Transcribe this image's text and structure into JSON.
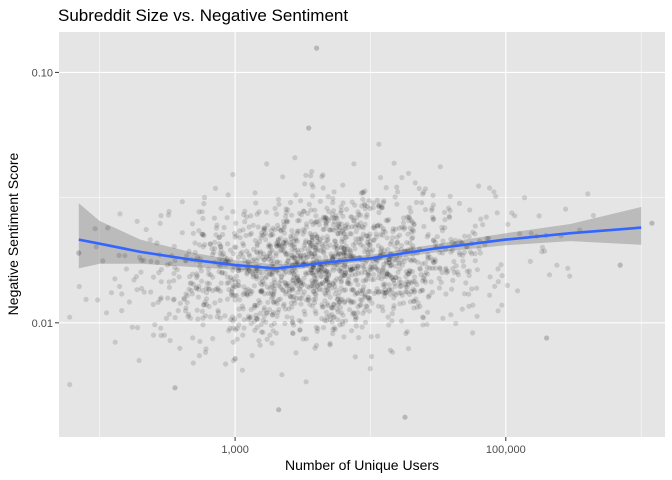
{
  "chart_data": {
    "type": "scatter",
    "title": "Subreddit Size vs. Negative Sentiment",
    "xlabel": "Number of Unique Users",
    "ylabel": "Negative Sentiment Score",
    "x_scale": "log10",
    "y_scale": "log10",
    "xlim": [
      50,
      1500000
    ],
    "ylim": [
      0.0035,
      0.145
    ],
    "x_ticks": [
      {
        "value": 1000,
        "label": "1,000"
      },
      {
        "value": 100000,
        "label": "100,000"
      }
    ],
    "y_ticks": [
      {
        "value": 0.01,
        "label": "0.01"
      },
      {
        "value": 0.1,
        "label": "0.10"
      }
    ],
    "grid": true,
    "colors": {
      "panel": "#e5e5e5",
      "grid_major": "#ffffff",
      "points": "#000000",
      "smooth_line": "#3366ff",
      "confidence_band": "#999999"
    },
    "smooth": {
      "method": "loess",
      "x": [
        70,
        100,
        200,
        500,
        1000,
        2000,
        3000,
        5000,
        10000,
        30000,
        100000,
        300000,
        1000000
      ],
      "y": [
        0.0215,
        0.0207,
        0.0192,
        0.0178,
        0.017,
        0.0165,
        0.0169,
        0.0175,
        0.0181,
        0.0198,
        0.0215,
        0.0228,
        0.024
      ],
      "lower": [
        0.0165,
        0.0172,
        0.0172,
        0.0167,
        0.0163,
        0.016,
        0.0164,
        0.017,
        0.0176,
        0.0191,
        0.0204,
        0.0212,
        0.0205
      ],
      "upper": [
        0.03,
        0.0255,
        0.0215,
        0.019,
        0.0178,
        0.0171,
        0.0174,
        0.018,
        0.0187,
        0.0206,
        0.0228,
        0.0248,
        0.029
      ]
    },
    "points_summary": {
      "count": 1700,
      "x_range": [
        60,
        1200000
      ],
      "y_range": [
        0.0042,
        0.125
      ],
      "note": "dense cloud centred near 5,000 users and 0.018 score"
    },
    "points_outliers": [
      {
        "x": 4000,
        "y": 0.125
      },
      {
        "x": 3500,
        "y": 0.06
      },
      {
        "x": 360,
        "y": 0.0055
      },
      {
        "x": 2100,
        "y": 0.0045
      },
      {
        "x": 18000,
        "y": 0.0042
      },
      {
        "x": 1000,
        "y": 0.0072
      },
      {
        "x": 200000,
        "y": 0.0087
      },
      {
        "x": 700000,
        "y": 0.017
      },
      {
        "x": 1200000,
        "y": 0.025
      },
      {
        "x": 70,
        "y": 0.019
      }
    ]
  }
}
